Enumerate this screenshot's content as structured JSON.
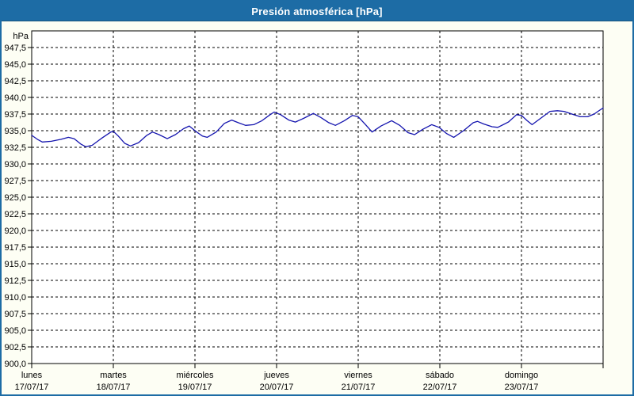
{
  "window": {
    "title": "Presión atmosférica [hPa]"
  },
  "colors": {
    "titlebar_bg": "#1D6CA5",
    "titlebar_text": "#FFFFFF",
    "outer_border": "#1D6CA5",
    "background": "#FDFEF4",
    "plot_bg": "#FFFFFF",
    "grid": "#000000",
    "frame": "#000000",
    "line": "#1414AE",
    "label_text": "#000000"
  },
  "chart_data": {
    "type": "line",
    "title": "Presión atmosférica [hPa]",
    "y_unit_label": "hPa",
    "ylabel": "hPa",
    "ylim": [
      900,
      950
    ],
    "y_tick_step": 2.5,
    "y_ticks": [
      947.5,
      945.0,
      942.5,
      940.0,
      937.5,
      935.0,
      932.5,
      930.0,
      927.5,
      925.0,
      922.5,
      920.0,
      917.5,
      915.0,
      912.5,
      910.0,
      907.5,
      905.0,
      902.5,
      900.0
    ],
    "y_tick_labels": [
      "947,5",
      "945,0",
      "942,5",
      "940,0",
      "937,5",
      "935,0",
      "932,5",
      "930,0",
      "927,5",
      "925,0",
      "922,5",
      "920,0",
      "917,5",
      "915,0",
      "912,5",
      "910,0",
      "907,5",
      "905,0",
      "902,5",
      "900,0"
    ],
    "decimal_separator": "comma",
    "x_range_days": [
      0,
      7
    ],
    "x_days": [
      {
        "name": "lunes",
        "date": "17/07/17"
      },
      {
        "name": "martes",
        "date": "18/07/17"
      },
      {
        "name": "miércoles",
        "date": "19/07/17"
      },
      {
        "name": "jueves",
        "date": "20/07/17"
      },
      {
        "name": "viernes",
        "date": "21/07/17"
      },
      {
        "name": "sábado",
        "date": "22/07/17"
      },
      {
        "name": "domingo",
        "date": "23/07/17"
      }
    ],
    "grid": "dashed-black",
    "legend": "none",
    "series": [
      {
        "name": "Presión atmosférica",
        "color": "#1414AE",
        "points": [
          [
            0.0,
            934.3
          ],
          [
            0.07,
            933.7
          ],
          [
            0.13,
            933.3
          ],
          [
            0.24,
            933.4
          ],
          [
            0.36,
            933.7
          ],
          [
            0.45,
            934.0
          ],
          [
            0.52,
            933.8
          ],
          [
            0.6,
            933.0
          ],
          [
            0.66,
            932.6
          ],
          [
            0.74,
            932.8
          ],
          [
            0.85,
            933.8
          ],
          [
            0.97,
            934.8
          ],
          [
            1.0,
            934.9
          ],
          [
            1.06,
            934.2
          ],
          [
            1.14,
            933.1
          ],
          [
            1.21,
            932.7
          ],
          [
            1.31,
            933.2
          ],
          [
            1.41,
            934.3
          ],
          [
            1.48,
            934.8
          ],
          [
            1.56,
            934.4
          ],
          [
            1.66,
            933.8
          ],
          [
            1.76,
            934.4
          ],
          [
            1.86,
            935.3
          ],
          [
            1.93,
            935.7
          ],
          [
            2.01,
            934.9
          ],
          [
            2.09,
            934.2
          ],
          [
            2.15,
            934.0
          ],
          [
            2.26,
            934.8
          ],
          [
            2.36,
            936.1
          ],
          [
            2.45,
            936.6
          ],
          [
            2.53,
            936.2
          ],
          [
            2.62,
            935.8
          ],
          [
            2.72,
            935.9
          ],
          [
            2.82,
            936.5
          ],
          [
            2.92,
            937.4
          ],
          [
            2.97,
            937.8
          ],
          [
            3.05,
            937.4
          ],
          [
            3.15,
            936.6
          ],
          [
            3.23,
            936.3
          ],
          [
            3.34,
            936.9
          ],
          [
            3.45,
            937.6
          ],
          [
            3.54,
            937.0
          ],
          [
            3.64,
            936.2
          ],
          [
            3.72,
            935.8
          ],
          [
            3.83,
            936.5
          ],
          [
            3.93,
            937.3
          ],
          [
            4.0,
            937.1
          ],
          [
            4.09,
            935.9
          ],
          [
            4.17,
            934.8
          ],
          [
            4.28,
            935.7
          ],
          [
            4.41,
            936.5
          ],
          [
            4.51,
            935.8
          ],
          [
            4.61,
            934.7
          ],
          [
            4.69,
            934.4
          ],
          [
            4.79,
            935.2
          ],
          [
            4.9,
            935.9
          ],
          [
            4.99,
            935.5
          ],
          [
            5.08,
            934.6
          ],
          [
            5.17,
            934.0
          ],
          [
            5.29,
            935.0
          ],
          [
            5.41,
            936.2
          ],
          [
            5.46,
            936.4
          ],
          [
            5.54,
            936.0
          ],
          [
            5.64,
            935.6
          ],
          [
            5.71,
            935.5
          ],
          [
            5.84,
            936.3
          ],
          [
            5.94,
            937.4
          ],
          [
            6.0,
            937.3
          ],
          [
            6.07,
            936.5
          ],
          [
            6.13,
            935.9
          ],
          [
            6.24,
            936.9
          ],
          [
            6.35,
            937.9
          ],
          [
            6.44,
            938.0
          ],
          [
            6.52,
            937.9
          ],
          [
            6.64,
            937.4
          ],
          [
            6.72,
            937.1
          ],
          [
            6.81,
            937.1
          ],
          [
            6.89,
            937.5
          ],
          [
            6.96,
            938.1
          ],
          [
            7.0,
            938.4
          ]
        ]
      }
    ]
  }
}
